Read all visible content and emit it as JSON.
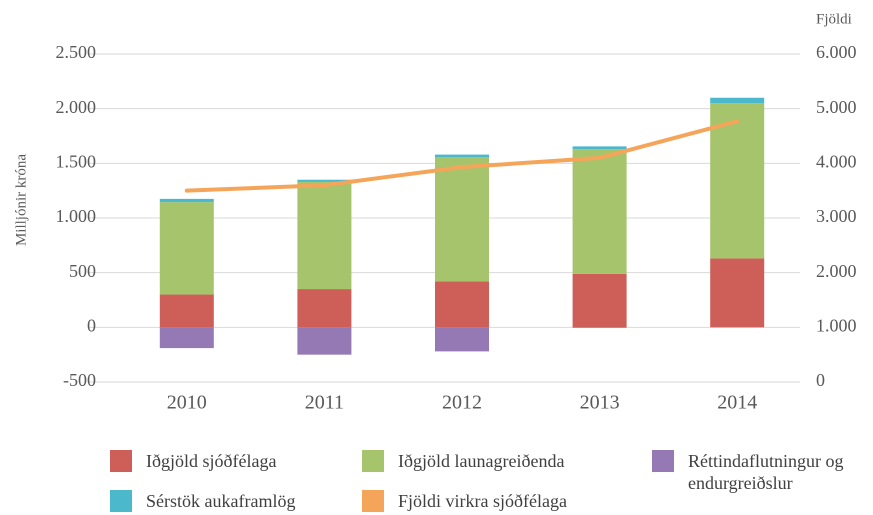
{
  "chart_data": {
    "type": "bar",
    "stacked": true,
    "y_label": "Milljónir króna",
    "y2_label": "Fjöldi",
    "categories": [
      "2010",
      "2011",
      "2012",
      "2013",
      "2014"
    ],
    "series": [
      {
        "name": "Iðgjöld sjóðfélaga",
        "color": "#cd5f58",
        "values": [
          300,
          350,
          420,
          490,
          630
        ]
      },
      {
        "name": "Iðgjöld launagreiðenda",
        "color": "#a6c46b",
        "values": [
          845,
          980,
          1135,
          1140,
          1420
        ]
      },
      {
        "name": "Réttindaflutningur og endurgreiðslur",
        "color": "#9479b4",
        "values": [
          -190,
          -250,
          -220,
          -5,
          0
        ]
      },
      {
        "name": "Sérstök aukaframlög",
        "color": "#4bb8cc",
        "values": [
          30,
          20,
          25,
          25,
          50
        ]
      },
      {
        "name": "Fjöldi virkra sjóðfélaga",
        "color": "#f4a55a",
        "type": "line",
        "axis": "y2",
        "values": [
          3500,
          3600,
          3930,
          4100,
          4770
        ]
      }
    ],
    "ylim": [
      -500,
      2500
    ],
    "yticks": [
      -500,
      0,
      500,
      {
        "value": 1000,
        "label": "1.000"
      },
      {
        "value": 1500,
        "label": "1.500"
      },
      {
        "value": 2000,
        "label": "2.000"
      },
      {
        "value": 2500,
        "label": "2.500"
      }
    ],
    "y2lim": [
      0,
      6000
    ],
    "y2ticks": [
      0,
      {
        "value": 1000,
        "label": "1.000"
      },
      {
        "value": 2000,
        "label": "2.000"
      },
      {
        "value": 3000,
        "label": "3.000"
      },
      {
        "value": 4000,
        "label": "4.000"
      },
      {
        "value": 5000,
        "label": "5.000"
      },
      {
        "value": 6000,
        "label": "6.000"
      }
    ],
    "grid": true
  }
}
